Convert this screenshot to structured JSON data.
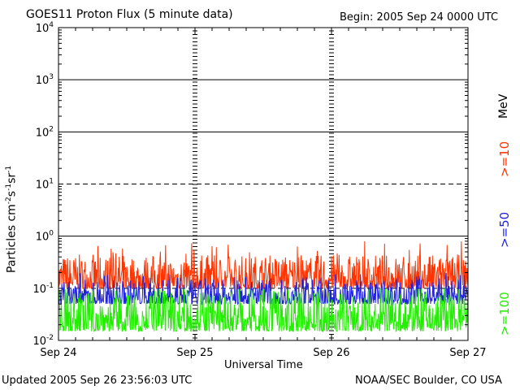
{
  "header": {
    "title": "GOES11 Proton Flux (5 minute data)",
    "begin": "Begin: 2005 Sep 24 0000 UTC"
  },
  "footer": {
    "updated": "Updated 2005 Sep 26 23:56:03 UTC",
    "credit": "NOAA/SEC Boulder, CO USA"
  },
  "legend": {
    "unit": "MeV",
    "items": [
      {
        "label": ">=10",
        "color": "#ff3300"
      },
      {
        "label": ">=50",
        "color": "#2222dd"
      },
      {
        "label": ">=100",
        "color": "#22ee00"
      }
    ]
  },
  "chart_data": {
    "type": "line",
    "title": "GOES11 Proton Flux (5 minute data)",
    "xlabel": "Universal Time",
    "ylabel": "Particles cm-2s-1sr-1",
    "yscale": "log",
    "ylim": [
      0.01,
      10000
    ],
    "xlim": [
      "2005-09-24 00:00",
      "2005-09-27 00:00"
    ],
    "x_ticks": [
      "Sep 24",
      "Sep 25",
      "Sep 26",
      "Sep 27"
    ],
    "y_ticks": [
      {
        "base": "10",
        "exp": "-2"
      },
      {
        "base": "10",
        "exp": "-1"
      },
      {
        "base": "10",
        "exp": "0"
      },
      {
        "base": "10",
        "exp": "1"
      },
      {
        "base": "10",
        "exp": "2"
      },
      {
        "base": "10",
        "exp": "3"
      },
      {
        "base": "10",
        "exp": "4"
      }
    ],
    "reference_lines": [
      {
        "value": 10,
        "style": "dashed"
      },
      {
        "value": 0.1,
        "style": "dashed"
      }
    ],
    "series": [
      {
        "name": ">=10 MeV",
        "color": "#ff3300",
        "typical_range": [
          0.1,
          0.45
        ],
        "peak": 0.8
      },
      {
        "name": ">=50 MeV",
        "color": "#2222dd",
        "typical_range": [
          0.05,
          0.15
        ],
        "peak": 0.2
      },
      {
        "name": ">=100 MeV",
        "color": "#22ee00",
        "typical_range": [
          0.015,
          0.09
        ],
        "peak": 0.1
      }
    ]
  }
}
